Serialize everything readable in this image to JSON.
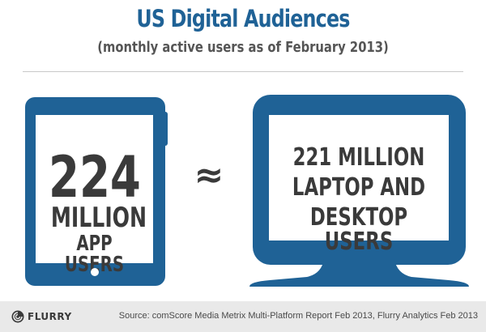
{
  "header": {
    "title": "US Digital Audiences",
    "subtitle": "(monthly active users as of February 2013)"
  },
  "tablet": {
    "icon": "tablet-device",
    "number": "224",
    "line2": "MILLION",
    "line3": "APP USERS"
  },
  "comparison": {
    "symbol": "≈"
  },
  "monitor": {
    "icon": "desktop-monitor",
    "line1": "221 MILLION",
    "line2": "LAPTOP AND",
    "line3": "DESKTOP USERS"
  },
  "footer": {
    "logo_text": "FLURRY",
    "source": "Source: comScore Media Metrix Multi-Platform Report Feb 2013, Flurry Analytics Feb 2013"
  },
  "colors": {
    "brand_blue": "#1f6296",
    "text_dark": "#3a3a3a",
    "footer_bg": "#e9e9e9"
  }
}
